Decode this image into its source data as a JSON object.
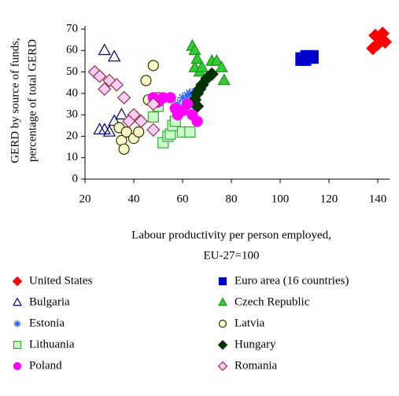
{
  "chart_data": {
    "type": "scatter",
    "y_label": [
      "GERD by source of funds,",
      "percentage of total GERD"
    ],
    "x_label": [
      "Labour productivity per person employed,",
      "EU-27=100"
    ],
    "xlim": [
      20,
      145
    ],
    "xticks": [
      20,
      40,
      60,
      80,
      100,
      120,
      140
    ],
    "ylim": [
      0,
      70
    ],
    "yticks": [
      0,
      10,
      20,
      30,
      40,
      50,
      60,
      70
    ],
    "series": [
      {
        "name": "United States",
        "color": "#ff0000",
        "marker": "diamond",
        "filled": true,
        "x": [
          138,
          139,
          141,
          142,
          143,
          140
        ],
        "values": [
          61,
          67,
          65,
          68,
          64,
          63
        ]
      },
      {
        "name": "Euro area (16 countries)",
        "color": "#0000cc",
        "marker": "square",
        "filled": true,
        "x": [
          109,
          110,
          111,
          112,
          113
        ],
        "values": [
          56,
          56,
          57,
          57,
          57
        ]
      },
      {
        "name": "Bulgaria",
        "color": "#000080",
        "marker": "triangle",
        "filled": false,
        "x": [
          28,
          32,
          26,
          28,
          30,
          32,
          35
        ],
        "values": [
          60,
          57,
          23,
          23,
          22,
          27,
          30
        ]
      },
      {
        "name": "Czech Republic",
        "color": "#33cc33",
        "marker": "triangle",
        "filled": true,
        "x": [
          64,
          65,
          65,
          66,
          67,
          72,
          74,
          76,
          77,
          68
        ],
        "values": [
          62,
          60,
          52,
          56,
          50,
          55,
          55,
          52,
          46,
          52
        ]
      },
      {
        "name": "Estonia",
        "color": "#3366ff",
        "marker": "asterisk",
        "filled": false,
        "x": [
          60,
          62,
          63,
          64,
          58
        ],
        "values": [
          38,
          39,
          40,
          40,
          35
        ]
      },
      {
        "name": "Latvia",
        "color": "#ffffcc",
        "marker": "circle",
        "filled": true,
        "x": [
          34,
          35,
          36,
          37,
          40,
          42,
          45,
          48,
          50,
          46
        ],
        "values": [
          24,
          18,
          14,
          22,
          19,
          22,
          46,
          53,
          38,
          37
        ]
      },
      {
        "name": "Lithuania",
        "color": "#ccffcc",
        "marker": "square",
        "filled": true,
        "x": [
          48,
          52,
          54,
          55,
          56,
          60,
          63,
          57,
          50
        ],
        "values": [
          29,
          17,
          20,
          21,
          25,
          22,
          22,
          27,
          34
        ]
      },
      {
        "name": "Hungary",
        "color": "#003300",
        "marker": "diamond",
        "filled": true,
        "x": [
          65,
          66,
          67,
          68,
          70,
          72,
          66
        ],
        "values": [
          37,
          40,
          42,
          44,
          47,
          49,
          34
        ]
      },
      {
        "name": "Poland",
        "color": "#ff00ff",
        "marker": "circle",
        "filled": true,
        "x": [
          48,
          50,
          52,
          55,
          57,
          60,
          62,
          64,
          66,
          58
        ],
        "values": [
          38,
          36,
          38,
          38,
          33,
          32,
          35,
          30,
          27,
          30
        ]
      },
      {
        "name": "Romania",
        "color": "#ffccff",
        "marker": "diamond",
        "filled": true,
        "x": [
          24,
          26,
          28,
          30,
          33,
          36,
          40,
          38,
          43,
          48,
          48
        ],
        "values": [
          50,
          48,
          42,
          46,
          44,
          38,
          30,
          27,
          27,
          23,
          35
        ]
      }
    ]
  }
}
